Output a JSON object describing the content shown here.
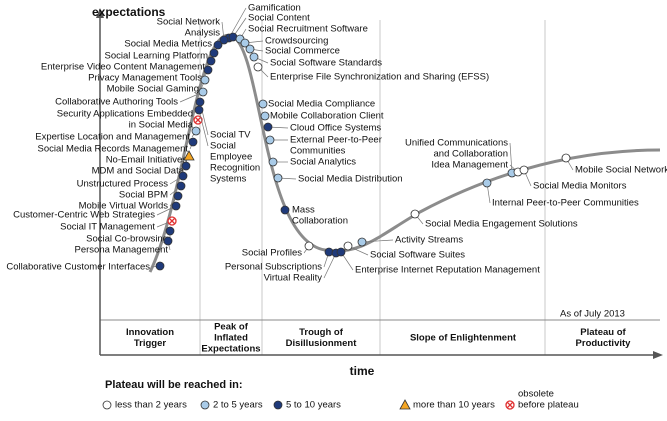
{
  "y_axis_label": "expectations",
  "x_axis_label": "time",
  "as_of": "As of July 2013",
  "phases": [
    {
      "label": [
        "Innovation",
        "Trigger"
      ]
    },
    {
      "label": [
        "Peak of",
        "Inflated",
        "Expectations"
      ]
    },
    {
      "label": [
        "Trough of",
        "Disillusionment"
      ]
    },
    {
      "label": [
        "Slope of Enlightenment"
      ]
    },
    {
      "label": [
        "Plateau of",
        "Productivity"
      ]
    }
  ],
  "legend": {
    "title": "Plateau will be reached in:",
    "items": [
      {
        "label": [
          "less than 2 years"
        ],
        "color": "#ffffff",
        "marker": "circle"
      },
      {
        "label": [
          "2 to 5 years"
        ],
        "color": "#a9cbe8",
        "marker": "circle"
      },
      {
        "label": [
          "5 to 10 years"
        ],
        "color": "#1f3a7a",
        "marker": "circle"
      },
      {
        "label": [
          "more than 10 years"
        ],
        "color": "#f5a623",
        "marker": "triangle"
      },
      {
        "label": [
          "obsolete",
          "before plateau"
        ],
        "color": "#e03030",
        "marker": "cross"
      }
    ]
  },
  "nodes": [
    {
      "label": [
        "Gamification"
      ],
      "color": "#1f3a7a",
      "marker": "circle"
    },
    {
      "label": [
        "Social Content"
      ],
      "color": "#1f3a7a",
      "marker": "circle"
    },
    {
      "label": [
        "Social Recruitment Software"
      ],
      "color": "#a9cbe8",
      "marker": "circle"
    },
    {
      "label": [
        "Crowdsourcing"
      ],
      "color": "#a9cbe8",
      "marker": "circle"
    },
    {
      "label": [
        "Social Commerce"
      ],
      "color": "#a9cbe8",
      "marker": "circle"
    },
    {
      "label": [
        "Social Software Standards"
      ],
      "color": "#a9cbe8",
      "marker": "circle"
    },
    {
      "label": [
        "Enterprise File Synchronization and Sharing (EFSS)"
      ],
      "color": "#ffffff",
      "marker": "circle"
    },
    {
      "label": [
        "Social Network",
        "Analysis"
      ],
      "color": "#1f3a7a",
      "marker": "circle"
    },
    {
      "label": [
        "Social Media Metrics"
      ],
      "color": "#1f3a7a",
      "marker": "circle"
    },
    {
      "label": [
        "Social Learning Platform"
      ],
      "color": "#1f3a7a",
      "marker": "circle"
    },
    {
      "label": [
        "Enterprise Video Content Management"
      ],
      "color": "#1f3a7a",
      "marker": "circle"
    },
    {
      "label": [
        "Privacy Management Tools"
      ],
      "color": "#1f3a7a",
      "marker": "circle"
    },
    {
      "label": [
        "Mobile Social Gaming"
      ],
      "color": "#a9cbe8",
      "marker": "circle"
    },
    {
      "label": [
        "Collaborative Authoring Tools"
      ],
      "color": "#a9cbe8",
      "marker": "circle"
    },
    {
      "label": [
        "Security Applications Embedded",
        "in Social Media"
      ],
      "color": "#e03030",
      "marker": "cross"
    },
    {
      "label": [
        "Expertise Location and Management"
      ],
      "color": "#a9cbe8",
      "marker": "circle"
    },
    {
      "label": [
        "Social Media Records Management"
      ],
      "color": "#1f3a7a",
      "marker": "circle"
    },
    {
      "label": [
        "No-Email Initiatives"
      ],
      "color": "#f5a623",
      "marker": "triangle"
    },
    {
      "label": [
        "MDM and Social Data"
      ],
      "color": "#1f3a7a",
      "marker": "circle"
    },
    {
      "label": [
        "Unstructured Process"
      ],
      "color": "#1f3a7a",
      "marker": "circle"
    },
    {
      "label": [
        "Social BPM"
      ],
      "color": "#1f3a7a",
      "marker": "circle"
    },
    {
      "label": [
        "Mobile Virtual Worlds"
      ],
      "color": "#1f3a7a",
      "marker": "circle"
    },
    {
      "label": [
        "Customer-Centric Web Strategies"
      ],
      "color": "#1f3a7a",
      "marker": "circle"
    },
    {
      "label": [
        "Social IT Management"
      ],
      "color": "#e03030",
      "marker": "cross"
    },
    {
      "label": [
        "Social Co-browsing"
      ],
      "color": "#1f3a7a",
      "marker": "circle"
    },
    {
      "label": [
        "Persona Management"
      ],
      "color": "#1f3a7a",
      "marker": "circle"
    },
    {
      "label": [
        "Collaborative Customer Interfaces"
      ],
      "color": "#1f3a7a",
      "marker": "circle"
    },
    {
      "label": [
        "Social TV"
      ],
      "color": "#1f3a7a",
      "marker": "circle"
    },
    {
      "label": [
        "Social",
        "Employee",
        "Recognition",
        "Systems"
      ],
      "color": "#1f3a7a",
      "marker": "circle"
    },
    {
      "label": [
        "Social Media Compliance"
      ],
      "color": "#a9cbe8",
      "marker": "circle"
    },
    {
      "label": [
        "Mobile Collaboration Client"
      ],
      "color": "#a9cbe8",
      "marker": "circle"
    },
    {
      "label": [
        "Cloud Office Systems"
      ],
      "color": "#1f3a7a",
      "marker": "circle"
    },
    {
      "label": [
        "External Peer-to-Peer",
        "Communities"
      ],
      "color": "#a9cbe8",
      "marker": "circle"
    },
    {
      "label": [
        "Social Analytics"
      ],
      "color": "#a9cbe8",
      "marker": "circle"
    },
    {
      "label": [
        "Social Media Distribution"
      ],
      "color": "#a9cbe8",
      "marker": "circle"
    },
    {
      "label": [
        "Mass",
        "Collaboration"
      ],
      "color": "#1f3a7a",
      "marker": "circle"
    },
    {
      "label": [
        "Social Profiles"
      ],
      "color": "#ffffff",
      "marker": "circle"
    },
    {
      "label": [
        "Personal Subscriptions"
      ],
      "color": "#1f3a7a",
      "marker": "circle"
    },
    {
      "label": [
        "Virtual Reality"
      ],
      "color": "#1f3a7a",
      "marker": "circle"
    },
    {
      "label": [
        "Enterprise Internet Reputation Management"
      ],
      "color": "#1f3a7a",
      "marker": "circle"
    },
    {
      "label": [
        "Social Software Suites"
      ],
      "color": "#ffffff",
      "marker": "circle"
    },
    {
      "label": [
        "Activity Streams"
      ],
      "color": "#a9cbe8",
      "marker": "circle"
    },
    {
      "label": [
        "Social Media Engagement Solutions"
      ],
      "color": "#ffffff",
      "marker": "circle"
    },
    {
      "label": [
        "Internal Peer-to-Peer Communities"
      ],
      "color": "#a9cbe8",
      "marker": "circle"
    },
    {
      "label": [
        "Unified Communications",
        "and Collaboration"
      ],
      "color": "#a9cbe8",
      "marker": "circle"
    },
    {
      "label": [
        "Idea Management"
      ],
      "color": "#ffffff",
      "marker": "circle"
    },
    {
      "label": [
        "Social Media Monitors"
      ],
      "color": "#ffffff",
      "marker": "circle"
    },
    {
      "label": [
        "Mobile Social Networks"
      ],
      "color": "#ffffff",
      "marker": "circle"
    }
  ]
}
